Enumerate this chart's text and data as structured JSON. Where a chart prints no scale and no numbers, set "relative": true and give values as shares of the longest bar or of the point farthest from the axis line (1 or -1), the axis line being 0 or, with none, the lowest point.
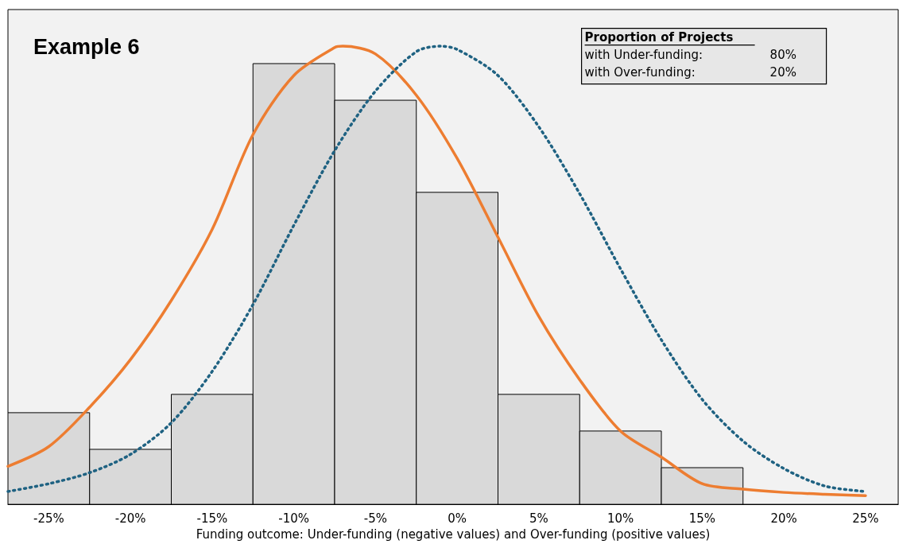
{
  "chart_data": {
    "type": "histogram",
    "title": "Example 6",
    "xlabel": "Funding outcome: Under-funding (negative values) and Over-funding (positive values)",
    "relative": true,
    "annotations": [
      "Proportion of Projects",
      "with Under-funding:",
      "80%",
      "with Over-funding:",
      "20%"
    ],
    "xlim": [
      -27.5,
      27
    ],
    "xticks": [
      {
        "value": -25,
        "label": "-25%"
      },
      {
        "value": -20,
        "label": "-20%"
      },
      {
        "value": -15,
        "label": "-15%"
      },
      {
        "value": -10,
        "label": "-10%"
      },
      {
        "value": -5,
        "label": "-5%"
      },
      {
        "value": 0,
        "label": "0%"
      },
      {
        "value": 5,
        "label": "5%"
      },
      {
        "value": 10,
        "label": "10%"
      },
      {
        "value": 15,
        "label": "15%"
      },
      {
        "value": 20,
        "label": "20%"
      },
      {
        "value": 25,
        "label": "25%"
      }
    ],
    "tick_labels": "x",
    "marker": "none",
    "series": [
      {
        "color": "#d9d9d9",
        "bins": [
          -27.5,
          -22.5,
          -17.5,
          -12.5,
          -7.5,
          -2.5,
          2.5,
          7.5,
          12.5,
          17.5
        ],
        "values": [
          0.2,
          0.12,
          0.24,
          0.962,
          0.882,
          0.681,
          0.24,
          0.16,
          0.08
        ]
      },
      {
        "type": "line",
        "color": "#ed7d31",
        "line_style": "solid",
        "x": [
          -27.5,
          -25,
          -22.5,
          -20,
          -17.5,
          -15,
          -12.5,
          -10,
          -7.5,
          -7,
          -5,
          -2.5,
          0,
          2.5,
          5,
          7.5,
          10,
          12.5,
          15,
          17.5,
          20,
          22.5,
          25
        ],
        "values": [
          0.083,
          0.126,
          0.212,
          0.316,
          0.445,
          0.6,
          0.807,
          0.936,
          0.997,
          1.0,
          0.983,
          0.893,
          0.755,
          0.583,
          0.41,
          0.272,
          0.16,
          0.103,
          0.045,
          0.033,
          0.026,
          0.022,
          0.019
        ]
      },
      {
        "type": "line",
        "color": "#1f6282",
        "line_style": "dotted",
        "x": [
          -27.5,
          -25,
          -22.5,
          -20,
          -17.5,
          -15,
          -12.5,
          -10,
          -7.5,
          -5,
          -2.5,
          -1,
          0,
          2.5,
          5,
          7.5,
          10,
          12.5,
          15,
          17.5,
          20,
          22.5,
          25
        ],
        "values": [
          0.028,
          0.045,
          0.069,
          0.109,
          0.178,
          0.29,
          0.436,
          0.609,
          0.772,
          0.902,
          0.988,
          1.0,
          0.993,
          0.936,
          0.824,
          0.678,
          0.514,
          0.359,
          0.229,
          0.138,
          0.078,
          0.04,
          0.028
        ]
      }
    ]
  }
}
